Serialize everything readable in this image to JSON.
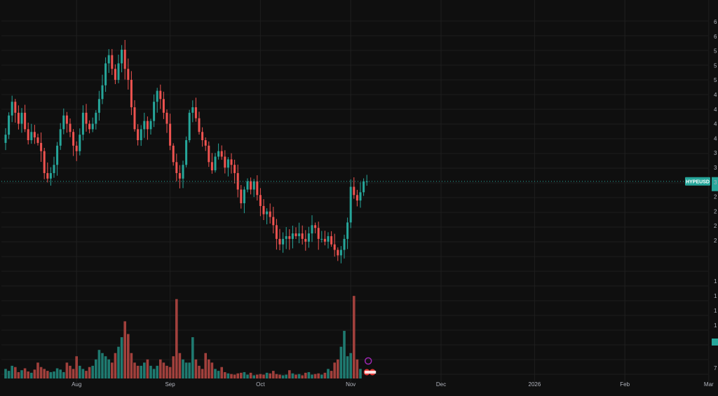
{
  "colors": {
    "background": "#0f0f0f",
    "grid": "#1e1e1e",
    "up": "#26a69a",
    "down": "#ef5350",
    "up_volume": "#1f7a70",
    "down_volume": "#a1403c",
    "axis_text": "#b2b5be",
    "price_line": "#26a69a"
  },
  "chart_data": {
    "type": "candlestick",
    "symbol": "HYPEUSD",
    "price_label": "HYPEUSD",
    "grid": true,
    "x_ticks": [
      "Aug",
      "Sep",
      "Oct",
      "Nov",
      "Dec",
      "2026",
      "Feb",
      "Mar"
    ],
    "price_range": [
      19,
      65
    ],
    "price_tick_labels": [
      "6",
      "6",
      "5",
      "5",
      "5",
      "4",
      "4",
      "4",
      "4",
      "3",
      "3",
      "3",
      "2",
      "2",
      "2",
      "2"
    ],
    "volume_tick_labels": [
      "1",
      "1",
      "1",
      "1",
      "7"
    ],
    "last_price": 34.5,
    "period_days": 190,
    "volume_range": [
      0,
      16
    ],
    "closes": [
      43.0,
      46.5,
      49.0,
      47.0,
      45.0,
      47.0,
      44.0,
      42.0,
      43.5,
      42.5,
      41.5,
      40.0,
      36.0,
      35.0,
      36.0,
      37.5,
      41.0,
      44.0,
      46.5,
      45.0,
      43.5,
      41.0,
      40.0,
      43.0,
      47.0,
      45.0,
      44.0,
      45.0,
      47.0,
      49.5,
      52.0,
      56.0,
      57.5,
      55.0,
      53.0,
      56.0,
      58.5,
      55.0,
      53.0,
      48.0,
      44.0,
      42.0,
      44.0,
      45.5,
      44.0,
      45.5,
      49.0,
      51.0,
      49.5,
      47.0,
      45.0,
      41.0,
      38.0,
      36.0,
      35.0,
      37.5,
      42.0,
      47.0,
      48.0,
      46.0,
      43.5,
      42.0,
      41.0,
      38.0,
      36.5,
      39.0,
      40.0,
      39.0,
      37.0,
      38.5,
      37.5,
      36.0,
      33.0,
      30.5,
      33.0,
      34.5,
      33.0,
      34.5,
      32.0,
      30.0,
      28.5,
      29.0,
      28.0,
      26.5,
      24.0,
      23.0,
      24.0,
      24.5,
      24.0,
      25.0,
      24.5,
      25.0,
      24.0,
      23.5,
      25.0,
      26.5,
      26.0,
      24.0,
      24.0,
      23.5,
      24.5,
      23.0,
      22.0,
      21.0,
      22.0,
      24.0,
      27.0,
      33.5,
      32.0,
      31.0,
      32.5,
      34.5,
      34.5
    ],
    "volumes": [
      1.5,
      1.2,
      2.0,
      1.8,
      1.0,
      1.3,
      1.6,
      1.1,
      0.9,
      1.4,
      2.5,
      1.8,
      1.5,
      1.2,
      1.0,
      1.1,
      1.6,
      1.4,
      1.0,
      2.5,
      2.0,
      1.5,
      3.5,
      2.0,
      1.5,
      1.2,
      1.8,
      2.0,
      3.0,
      4.5,
      4.0,
      3.5,
      3.0,
      2.5,
      4.0,
      5.0,
      6.5,
      9.0,
      7.0,
      4.0,
      2.5,
      2.0,
      2.0,
      2.5,
      3.0,
      2.0,
      1.5,
      2.0,
      3.0,
      2.5,
      2.0,
      1.8,
      3.5,
      12.5,
      4.0,
      3.0,
      2.5,
      2.5,
      6.5,
      3.0,
      2.0,
      1.5,
      4.0,
      3.0,
      2.5,
      1.5,
      1.2,
      1.8,
      1.0,
      0.8,
      0.7,
      0.6,
      0.8,
      0.9,
      1.0,
      0.6,
      0.9,
      0.5,
      0.6,
      0.7,
      0.6,
      0.9,
      0.8,
      1.2,
      0.7,
      0.6,
      0.5,
      0.6,
      1.3,
      0.8,
      0.6,
      0.7,
      0.5,
      0.9,
      1.0,
      0.6,
      0.7,
      0.8,
      0.6,
      0.9,
      1.5,
      1.2,
      2.5,
      3.0,
      5.0,
      7.5,
      3.5,
      4.0,
      13.0,
      3.0,
      1.5
    ]
  }
}
